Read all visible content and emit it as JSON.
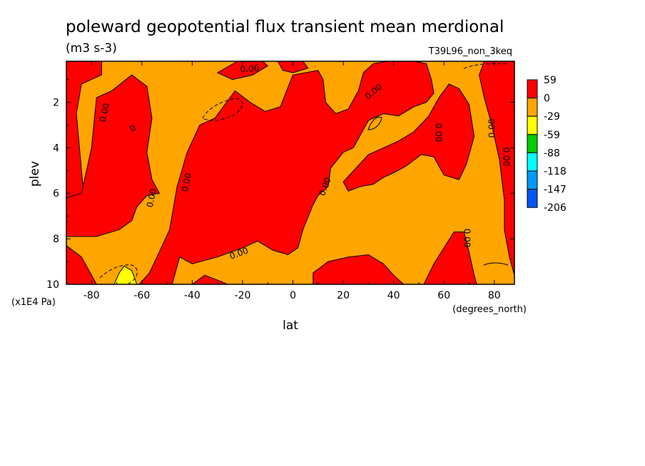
{
  "chart_data": {
    "type": "heatmap",
    "title": "poleward geopotential flux transient mean merdional",
    "units": "(m3 s-3)",
    "run_label": "T39L96_non_3keq",
    "xlabel": "lat",
    "xunits": "(degrees_north)",
    "ylabel": "plev",
    "yunits": "(x1E4 Pa)",
    "xlim": [
      -90,
      88
    ],
    "ylim": [
      10,
      0.2
    ],
    "x_ticks": [
      -80,
      -60,
      -40,
      -20,
      0,
      20,
      40,
      60,
      80
    ],
    "x_tick_labels": [
      "-80",
      "-60",
      "-40",
      "-20",
      "0",
      "20",
      "40",
      "60",
      "80"
    ],
    "y_ticks": [
      2,
      4,
      6,
      8,
      10
    ],
    "y_tick_labels": [
      "2",
      "4",
      "6",
      "8",
      "10"
    ],
    "background_level": "-29 to 0",
    "legend": {
      "placement": "right",
      "levels": [
        "59",
        "0",
        "-29",
        "-59",
        "-88",
        "-118",
        "-147",
        "-206"
      ],
      "colors": [
        "#ff0000",
        "#ffa500",
        "#ffff00",
        "#00cc00",
        "#00ffff",
        "#0099ff",
        "#0055ff"
      ]
    },
    "contour_labels": [
      "0.00",
      "0.00",
      "0.00",
      "0.00",
      "0.00",
      "0.00",
      "0.00",
      "0.00",
      "0.00",
      "0.00",
      "0.00",
      "0.00",
      "0.00"
    ],
    "regions": [
      {
        "level": "0 to 59",
        "color": "#ff0000",
        "points": [
          [
            -90,
            0.2
          ],
          [
            -76,
            0.2
          ],
          [
            -76,
            0.8
          ],
          [
            -84,
            1.2
          ],
          [
            -86,
            2.5
          ],
          [
            -83,
            6.2
          ],
          [
            -90,
            7
          ]
        ]
      },
      {
        "level": "0 to 59",
        "color": "#ff0000",
        "points": [
          [
            -78,
            1.8
          ],
          [
            -72,
            1.5
          ],
          [
            -64,
            0.8
          ],
          [
            -58,
            1.3
          ],
          [
            -56,
            2.7
          ],
          [
            -58,
            4.2
          ],
          [
            -56,
            5.4
          ],
          [
            -53,
            6
          ],
          [
            -58,
            6.1
          ],
          [
            -62,
            6.6
          ],
          [
            -64,
            7.2
          ],
          [
            -69,
            7.6
          ],
          [
            -78,
            7.9
          ],
          [
            -90,
            7.9
          ],
          [
            -90,
            6.2
          ],
          [
            -84,
            6
          ],
          [
            -80,
            4
          ]
        ]
      },
      {
        "level": "0 to 59",
        "color": "#ff0000",
        "points": [
          [
            -61,
            10
          ],
          [
            -57,
            9.5
          ],
          [
            -54,
            8.8
          ],
          [
            -49,
            7.6
          ],
          [
            -46,
            5.7
          ],
          [
            -42,
            4.2
          ],
          [
            -37,
            3
          ],
          [
            -31,
            2.7
          ],
          [
            -23,
            1.5
          ],
          [
            -17,
            2
          ],
          [
            -11,
            2.4
          ],
          [
            -5,
            2.2
          ],
          [
            0,
            0.8
          ],
          [
            5,
            0.7
          ],
          [
            10,
            0.6
          ],
          [
            12,
            1
          ],
          [
            13,
            2
          ],
          [
            17,
            2.5
          ],
          [
            22,
            2.3
          ],
          [
            26,
            1.5
          ],
          [
            28,
            0.7
          ],
          [
            32,
            0.3
          ],
          [
            38,
            0.2
          ],
          [
            48,
            0.2
          ],
          [
            53,
            0.3
          ],
          [
            55,
            1
          ],
          [
            56,
            1.6
          ],
          [
            53,
            2
          ],
          [
            48,
            2.2
          ],
          [
            42,
            2.6
          ],
          [
            36,
            2.5
          ],
          [
            30,
            2.8
          ],
          [
            27,
            3.4
          ],
          [
            24,
            4
          ],
          [
            20,
            4.2
          ],
          [
            15,
            4.9
          ],
          [
            14,
            5.7
          ],
          [
            10,
            6.1
          ],
          [
            8,
            6.5
          ],
          [
            4,
            7.6
          ],
          [
            2,
            8.4
          ],
          [
            -2,
            8.7
          ],
          [
            -8,
            8.5
          ],
          [
            -14,
            8.1
          ],
          [
            -20,
            8.4
          ],
          [
            -30,
            8.8
          ],
          [
            -40,
            9.1
          ],
          [
            -45,
            8.8
          ],
          [
            -48,
            10
          ]
        ]
      },
      {
        "level": "0 to 59",
        "color": "#ff0000",
        "points": [
          [
            -90,
            8.3
          ],
          [
            -84,
            8.8
          ],
          [
            -80,
            9.6
          ],
          [
            -78,
            10
          ],
          [
            -90,
            10
          ]
        ]
      },
      {
        "level": "0 to 59",
        "color": "#ff0000",
        "points": [
          [
            -40,
            10
          ],
          [
            -35,
            9.6
          ],
          [
            -28,
            9.9
          ],
          [
            -26,
            10
          ]
        ]
      },
      {
        "level": "0 to 59",
        "color": "#ff0000",
        "points": [
          [
            20,
            5.5
          ],
          [
            25,
            4.9
          ],
          [
            30,
            4.3
          ],
          [
            36,
            4
          ],
          [
            42,
            3.7
          ],
          [
            48,
            3.3
          ],
          [
            54,
            2.6
          ],
          [
            58,
            1.8
          ],
          [
            62,
            1.2
          ],
          [
            66,
            1.4
          ],
          [
            70,
            2.1
          ],
          [
            72,
            3.5
          ],
          [
            69,
            4.7
          ],
          [
            66,
            5.4
          ],
          [
            60,
            5.2
          ],
          [
            56,
            4.4
          ],
          [
            51,
            4.3
          ],
          [
            45,
            4.8
          ],
          [
            40,
            5.1
          ],
          [
            36,
            5.3
          ],
          [
            32,
            5.6
          ],
          [
            27,
            5.7
          ],
          [
            22,
            5.9
          ]
        ]
      },
      {
        "level": "0 to 59",
        "color": "#ff0000",
        "points": [
          [
            76,
            0.2
          ],
          [
            88,
            0.2
          ],
          [
            88,
            9.6
          ],
          [
            86,
            8.8
          ],
          [
            84,
            7.6
          ],
          [
            84,
            6.3
          ],
          [
            82,
            4.5
          ],
          [
            79,
            3
          ],
          [
            76,
            1.8
          ],
          [
            74,
            0.8
          ]
        ]
      },
      {
        "level": "0 to 59",
        "color": "#ff0000",
        "points": [
          [
            8,
            9.5
          ],
          [
            14,
            9
          ],
          [
            22,
            8.8
          ],
          [
            30,
            8.7
          ],
          [
            36,
            9.1
          ],
          [
            40,
            9.6
          ],
          [
            44,
            10
          ],
          [
            8,
            10
          ]
        ]
      },
      {
        "level": "0 to 59",
        "color": "#ff0000",
        "points": [
          [
            52,
            10
          ],
          [
            56,
            9.1
          ],
          [
            60,
            8.4
          ],
          [
            64,
            7.7
          ],
          [
            68,
            7.7
          ],
          [
            70,
            8.6
          ],
          [
            72,
            9.6
          ],
          [
            73,
            10
          ]
        ]
      },
      {
        "level": "0 to 59",
        "color": "#ff0000",
        "points": [
          [
            -22,
            0.2
          ],
          [
            -12,
            0.2
          ],
          [
            -10,
            0.4
          ],
          [
            -16,
            0.8
          ],
          [
            -24,
            1
          ],
          [
            -30,
            0.7
          ]
        ]
      },
      {
        "level": "0 to 59",
        "color": "#ff0000",
        "points": [
          [
            -6,
            0.2
          ],
          [
            4,
            0.2
          ],
          [
            6,
            0.5
          ],
          [
            0,
            0.7
          ],
          [
            -4,
            0.6
          ]
        ]
      },
      {
        "level": "-59 to -29",
        "color": "#ffff00",
        "points": [
          [
            -71,
            10
          ],
          [
            -69,
            9.5
          ],
          [
            -67,
            9.2
          ],
          [
            -64,
            9.4
          ],
          [
            -62,
            10
          ]
        ]
      }
    ]
  }
}
